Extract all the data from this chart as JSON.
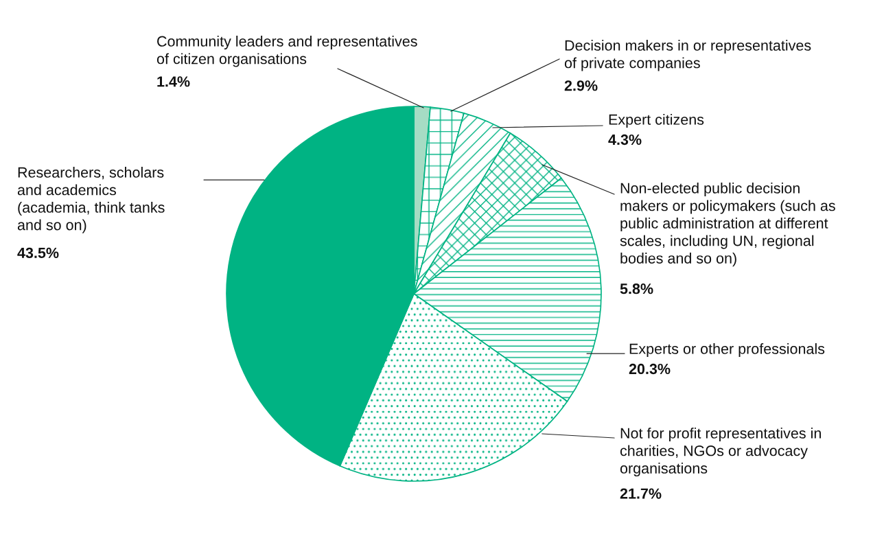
{
  "chart_data": {
    "type": "pie",
    "categories": [
      "Community leaders and representatives\nof citizen organisations",
      "Decision makers in or representatives\nof private companies",
      "Expert citizens",
      "Non-elected public decision\nmakers or policymakers (such as\npublic administration at different\nscales, including UN, regional\nbodies and so on)",
      "Experts or other professionals",
      "Not for profit representatives in\ncharities, NGOs or advocacy\norganisations",
      "Researchers, scholars\nand academics\n(academia, think tanks\nand so on)"
    ],
    "values": [
      1.4,
      2.9,
      4.3,
      5.8,
      20.3,
      21.7,
      43.5
    ],
    "value_labels": [
      "1.4%",
      "2.9%",
      "4.3%",
      "5.8%",
      "20.3%",
      "21.7%",
      "43.5%"
    ],
    "colors": [
      "#a6dcc4",
      "#00b383",
      "#00b383",
      "#00b383",
      "#00b383",
      "#00b383",
      "#00b383"
    ]
  }
}
